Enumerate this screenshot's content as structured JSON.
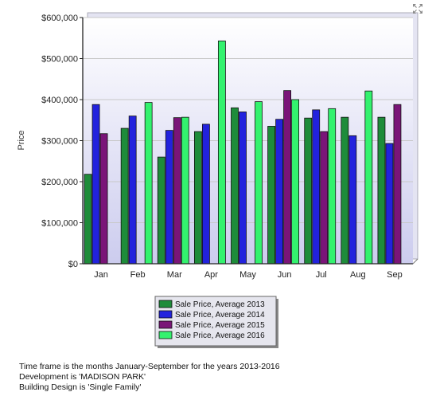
{
  "chart_data": {
    "type": "bar",
    "title": "",
    "ylabel": "Price",
    "xlabel": "",
    "ylim": [
      0,
      600000
    ],
    "yticks": [
      0,
      100000,
      200000,
      300000,
      400000,
      500000,
      600000
    ],
    "ytick_labels": [
      "$0",
      "$100,000",
      "$200,000",
      "$300,000",
      "$400,000",
      "$500,000",
      "$600,000"
    ],
    "grid": true,
    "legend_position": "bottom-center",
    "categories": [
      "Jan",
      "Feb",
      "Mar",
      "Apr",
      "May",
      "Jun",
      "Jul",
      "Aug",
      "Sep"
    ],
    "series": [
      {
        "name": "Sale Price, Average 2013",
        "color": "#1e8c3a",
        "values": [
          218000,
          330000,
          260000,
          322000,
          380000,
          335000,
          355000,
          357000,
          357000
        ]
      },
      {
        "name": "Sale Price, Average 2014",
        "color": "#2222dd",
        "values": [
          388000,
          360000,
          325000,
          340000,
          370000,
          352000,
          375000,
          312000,
          293000
        ]
      },
      {
        "name": "Sale Price, Average 2015",
        "color": "#7a1578",
        "values": [
          317000,
          null,
          356000,
          null,
          null,
          422000,
          322000,
          null,
          388000
        ]
      },
      {
        "name": "Sale Price, Average 2016",
        "color": "#33f26e",
        "values": [
          null,
          393000,
          357000,
          543000,
          395000,
          400000,
          378000,
          421000,
          null
        ]
      }
    ]
  },
  "footnotes": [
    "Time frame is the months January-September for the years 2013-2016",
    "Development is 'MADISON PARK'",
    "Building Design is 'Single Family'"
  ],
  "colors": {
    "plot_background_top": "#ffffff",
    "plot_background_bottom": "#ccccee",
    "grid": "#c8c8c8"
  },
  "icons": {
    "expand": "expand-arrows-icon"
  }
}
